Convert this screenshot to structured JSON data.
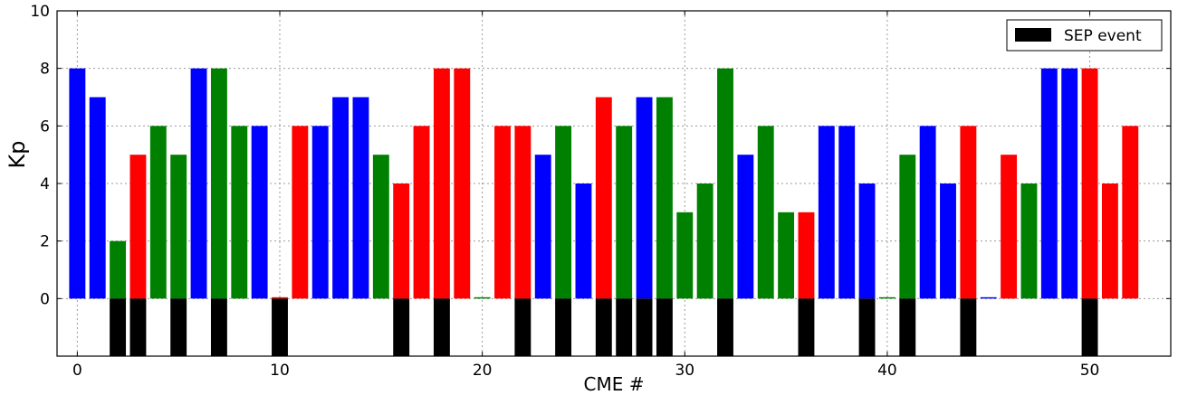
{
  "chart_data": {
    "type": "bar",
    "xlabel": "CME #",
    "ylabel": "Kp",
    "xlim": [
      -1,
      54
    ],
    "ylim": [
      -2,
      10
    ],
    "x_ticks": [
      0,
      10,
      20,
      30,
      40,
      50
    ],
    "y_ticks": [
      0,
      2,
      4,
      6,
      8,
      10
    ],
    "grid": true,
    "legend": {
      "label": "SEP event",
      "color": "#000000",
      "placement": "top-right"
    },
    "colors": {
      "blue": "#0000ff",
      "green": "#008000",
      "red": "#ff0000",
      "sep": "#000000"
    },
    "x": [
      0,
      1,
      2,
      3,
      4,
      5,
      6,
      7,
      8,
      9,
      10,
      11,
      12,
      13,
      14,
      15,
      16,
      17,
      18,
      19,
      20,
      21,
      22,
      23,
      24,
      25,
      26,
      27,
      28,
      29,
      30,
      31,
      32,
      33,
      34,
      35,
      36,
      37,
      38,
      39,
      40,
      41,
      42,
      43,
      44,
      45,
      46,
      47,
      48,
      49,
      50,
      51,
      52
    ],
    "kp": [
      8,
      7,
      2,
      5,
      6,
      5,
      8,
      8,
      6,
      6,
      0,
      6,
      6,
      7,
      7,
      5,
      4,
      6,
      8,
      8,
      0,
      6,
      6,
      5,
      6,
      4,
      7,
      6,
      7,
      7,
      3,
      4,
      8,
      5,
      6,
      3,
      3,
      6,
      6,
      4,
      0,
      5,
      6,
      4,
      6,
      0,
      5,
      4,
      8,
      8,
      8,
      4,
      6
    ],
    "bar_color": [
      "blue",
      "blue",
      "green",
      "red",
      "green",
      "green",
      "blue",
      "green",
      "green",
      "blue",
      "red",
      "red",
      "blue",
      "blue",
      "blue",
      "green",
      "red",
      "red",
      "red",
      "red",
      "green",
      "red",
      "red",
      "blue",
      "green",
      "blue",
      "red",
      "green",
      "blue",
      "green",
      "green",
      "green",
      "green",
      "blue",
      "green",
      "green",
      "red",
      "blue",
      "blue",
      "blue",
      "green",
      "green",
      "blue",
      "blue",
      "red",
      "blue",
      "red",
      "green",
      "blue",
      "blue",
      "red",
      "red",
      "red"
    ],
    "sep_event": [
      0,
      0,
      1,
      1,
      0,
      1,
      0,
      1,
      0,
      0,
      1,
      0,
      0,
      0,
      0,
      0,
      1,
      0,
      1,
      0,
      0,
      0,
      1,
      0,
      1,
      0,
      1,
      1,
      1,
      1,
      0,
      0,
      1,
      0,
      0,
      0,
      1,
      0,
      0,
      1,
      0,
      1,
      0,
      0,
      1,
      0,
      0,
      0,
      0,
      0,
      1,
      0,
      0
    ],
    "sep_bar_value": -2
  }
}
